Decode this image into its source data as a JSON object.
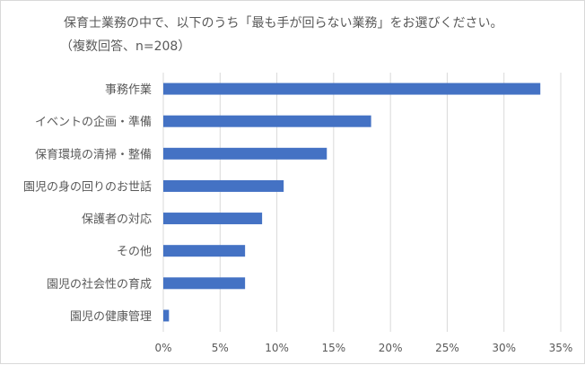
{
  "chart_data": {
    "type": "bar",
    "orientation": "horizontal",
    "title": "保育士業務の中で、以下のうち「最も手が回らない業務」をお選びください。",
    "subtitle": "（複数回答、n=208）",
    "categories": [
      "事務作業",
      "イベントの企画・準備",
      "保育環境の清掃・整備",
      "園児の身の回りのお世話",
      "保護者の対応",
      "その他",
      "園児の社会性の育成",
      "園児の健康管理"
    ],
    "values": [
      33.2,
      18.3,
      14.4,
      10.6,
      8.7,
      7.2,
      7.2,
      0.5
    ],
    "xlim": [
      0,
      35
    ],
    "xticks": [
      0,
      5,
      10,
      15,
      20,
      25,
      30,
      35
    ],
    "tick_format": "{v}%",
    "xlabel": "",
    "ylabel": "",
    "grid": "vertical",
    "legend": "none",
    "bar_color": "#4472c4",
    "grid_color": "#d9d9d9"
  }
}
